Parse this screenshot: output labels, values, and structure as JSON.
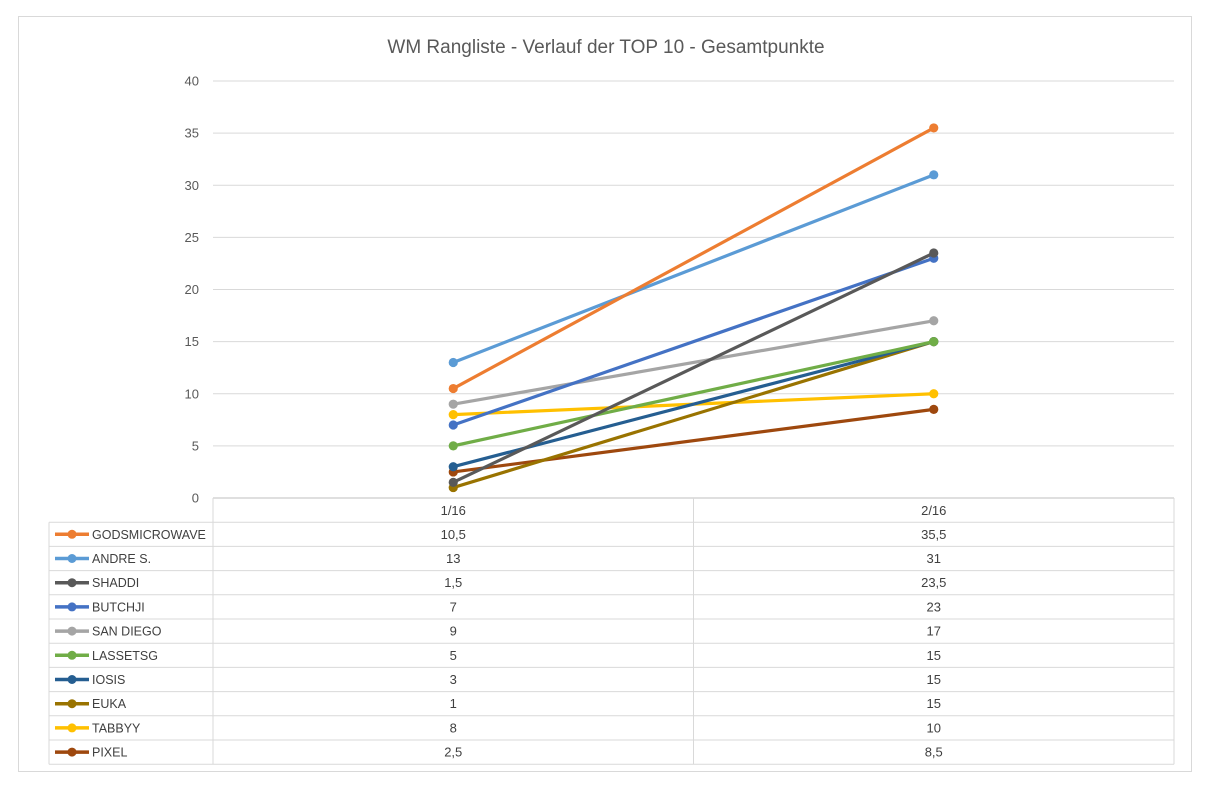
{
  "chart_data": {
    "type": "line",
    "title": "WM Rangliste - Verlauf der TOP 10 - Gesamtpunkte",
    "categories": [
      "1/16",
      "2/16"
    ],
    "ylim": [
      0,
      40
    ],
    "yticks": [
      "0",
      "5",
      "10",
      "15",
      "20",
      "25",
      "30",
      "35",
      "40"
    ],
    "grid": true,
    "legend": "data-table",
    "series": [
      {
        "name": "GODSMICROWAVE",
        "color": "#ED7D31",
        "values": [
          10.5,
          35.5
        ],
        "labels": [
          "10,5",
          "35,5"
        ]
      },
      {
        "name": "ANDRE S.",
        "color": "#5B9BD5",
        "values": [
          13,
          31
        ],
        "labels": [
          "13",
          "31"
        ]
      },
      {
        "name": "SHADDI",
        "color": "#595959",
        "values": [
          1.5,
          23.5
        ],
        "labels": [
          "1,5",
          "23,5"
        ]
      },
      {
        "name": "BUTCHJI",
        "color": "#4472C4",
        "values": [
          7,
          23
        ],
        "labels": [
          "7",
          "23"
        ]
      },
      {
        "name": "SAN DIEGO",
        "color": "#A5A5A5",
        "values": [
          9,
          17
        ],
        "labels": [
          "9",
          "17"
        ]
      },
      {
        "name": "LASSETSG",
        "color": "#70AD47",
        "values": [
          5,
          15
        ],
        "labels": [
          "5",
          "15"
        ]
      },
      {
        "name": "IOSIS",
        "color": "#255E91",
        "values": [
          3,
          15
        ],
        "labels": [
          "3",
          "15"
        ]
      },
      {
        "name": "EUKA",
        "color": "#997300",
        "values": [
          1,
          15
        ],
        "labels": [
          "1",
          "15"
        ]
      },
      {
        "name": "TABBYY",
        "color": "#FFC000",
        "values": [
          8,
          10
        ],
        "labels": [
          "8",
          "10"
        ]
      },
      {
        "name": "PIXEL",
        "color": "#9E480E",
        "values": [
          2.5,
          8.5
        ],
        "labels": [
          "2,5",
          "8,5"
        ]
      }
    ]
  }
}
